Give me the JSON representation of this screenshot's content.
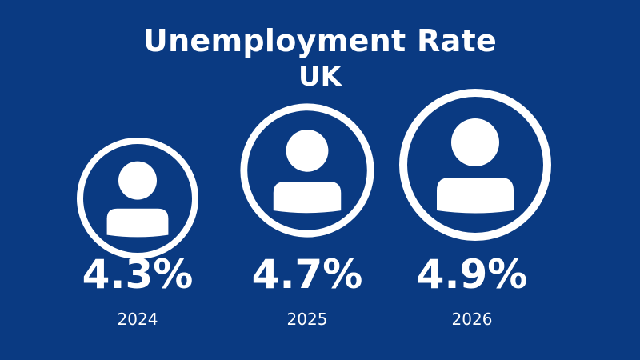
{
  "chart_data": {
    "type": "bar",
    "title": "Unemployment Rate",
    "subtitle": "UK",
    "categories": [
      "2024",
      "2025",
      "2026"
    ],
    "values": [
      4.3,
      4.7,
      4.9
    ],
    "value_labels": [
      "4.3%",
      "4.7%",
      "4.9%"
    ],
    "unit": "%",
    "icon": "person-in-circle-icon",
    "colors": {
      "background": "#0a3a82",
      "foreground": "#ffffff"
    }
  }
}
